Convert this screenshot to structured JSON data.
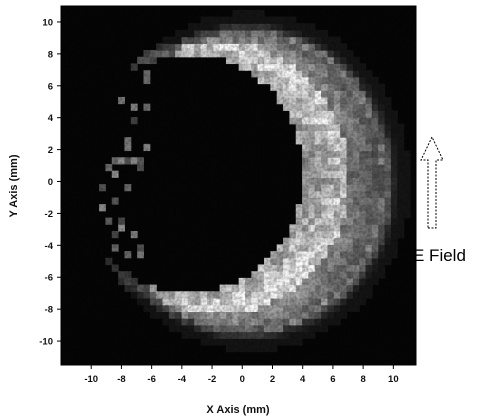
{
  "chart_data": {
    "type": "heatmap",
    "title": "",
    "xlabel": "X Axis (mm)",
    "ylabel": "Y Axis (mm)",
    "xlim": [
      -12,
      11.5
    ],
    "ylim": [
      -11.5,
      11
    ],
    "xticks": [
      -10,
      -8,
      -6,
      -4,
      -2,
      0,
      2,
      4,
      6,
      8,
      10
    ],
    "yticks": [
      10,
      8,
      6,
      4,
      2,
      0,
      -2,
      -4,
      -6,
      -8,
      -10
    ],
    "ring": {
      "description_of_shape": "crescent",
      "outer_center": [
        0.5,
        0
      ],
      "outer_radius": 10,
      "inner_center": [
        -3.5,
        0.5
      ],
      "inner_radius": 7.8,
      "peak_angle_deg": [
        90,
        -90
      ]
    },
    "background_color": "#050505",
    "annotation": {
      "text": "E Field",
      "arrow_direction": "up"
    }
  }
}
